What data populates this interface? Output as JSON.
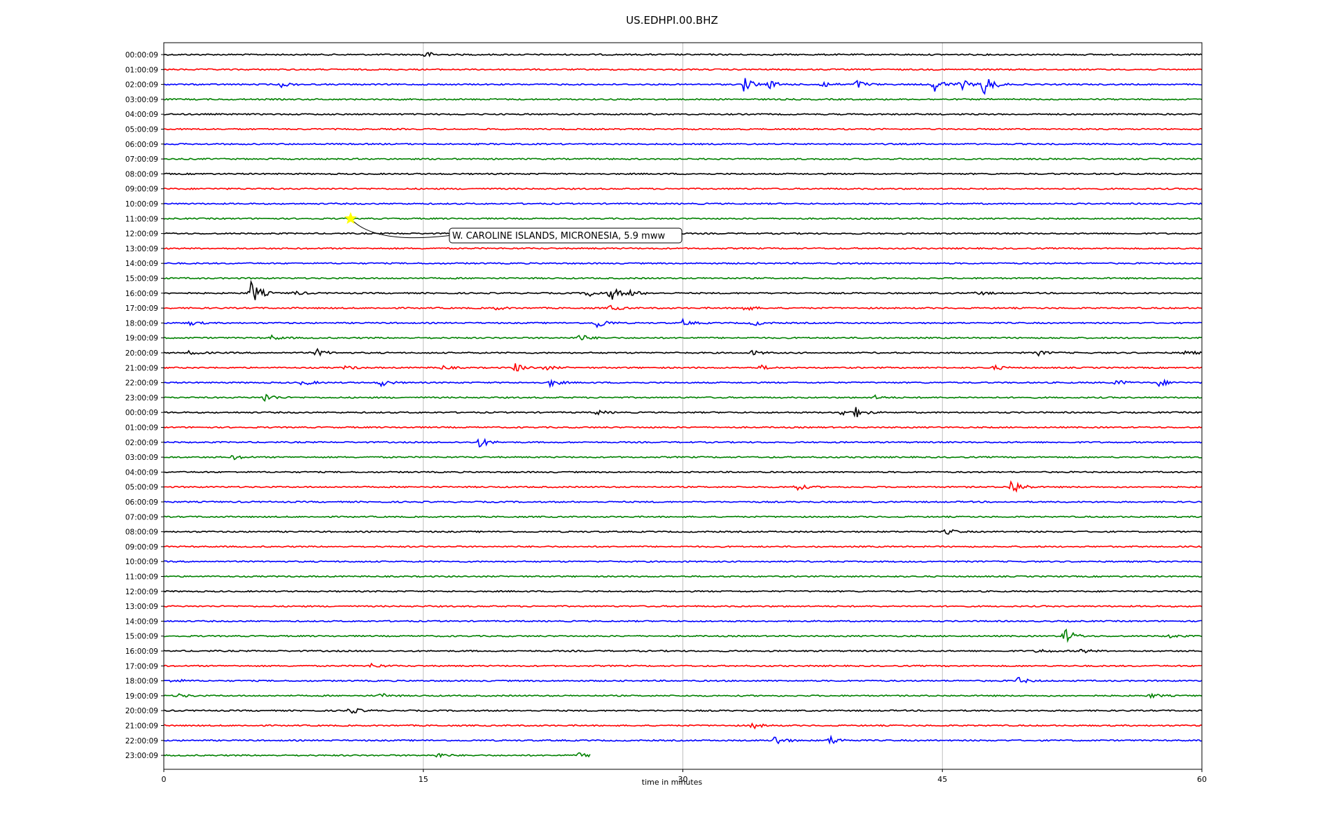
{
  "chart_data": {
    "type": "line",
    "title": "US.EDHPI.00.BHZ",
    "xlabel": "time in minutes",
    "ylabel": "",
    "xlim": [
      0,
      60
    ],
    "xticks": [
      0,
      15,
      30,
      45,
      60
    ],
    "grid": "vertical at x ticks",
    "row_labels": [
      "00:00:09",
      "01:00:09",
      "02:00:09",
      "03:00:09",
      "04:00:09",
      "05:00:09",
      "06:00:09",
      "07:00:09",
      "08:00:09",
      "09:00:09",
      "10:00:09",
      "11:00:09",
      "12:00:09",
      "13:00:09",
      "14:00:09",
      "15:00:09",
      "16:00:09",
      "17:00:09",
      "18:00:09",
      "19:00:09",
      "20:00:09",
      "21:00:09",
      "22:00:09",
      "23:00:09",
      "00:00:09",
      "01:00:09",
      "02:00:09",
      "03:00:09",
      "04:00:09",
      "05:00:09",
      "06:00:09",
      "07:00:09",
      "08:00:09",
      "09:00:09",
      "10:00:09",
      "11:00:09",
      "12:00:09",
      "13:00:09",
      "14:00:09",
      "15:00:09",
      "16:00:09",
      "17:00:09",
      "18:00:09",
      "19:00:09",
      "20:00:09",
      "21:00:09",
      "22:00:09",
      "23:00:09"
    ],
    "trace_colors": [
      "#000000",
      "#ff0000",
      "#0000ff",
      "#008000"
    ],
    "last_row_end_minute": 24.7,
    "event_bursts": [
      {
        "row": 0,
        "minute": 15.0,
        "amplitude": 0.5
      },
      {
        "row": 2,
        "minute": 6.8,
        "amplitude": 0.3
      },
      {
        "row": 2,
        "minute": 33.5,
        "amplitude": 1.0
      },
      {
        "row": 2,
        "minute": 35.0,
        "amplitude": 0.5
      },
      {
        "row": 2,
        "minute": 38.0,
        "amplitude": 0.5
      },
      {
        "row": 2,
        "minute": 40.0,
        "amplitude": 0.6
      },
      {
        "row": 2,
        "minute": 44.5,
        "amplitude": 1.0
      },
      {
        "row": 2,
        "minute": 46.0,
        "amplitude": 0.8
      },
      {
        "row": 2,
        "minute": 47.3,
        "amplitude": 1.8
      },
      {
        "row": 16,
        "minute": 5.0,
        "amplitude": 1.8
      },
      {
        "row": 16,
        "minute": 7.5,
        "amplitude": 0.3
      },
      {
        "row": 16,
        "minute": 24.5,
        "amplitude": 0.5
      },
      {
        "row": 16,
        "minute": 25.8,
        "amplitude": 1.0
      },
      {
        "row": 16,
        "minute": 27.0,
        "amplitude": 0.4
      },
      {
        "row": 16,
        "minute": 47.0,
        "amplitude": 0.3
      },
      {
        "row": 17,
        "minute": 19.0,
        "amplitude": 0.3
      },
      {
        "row": 17,
        "minute": 25.8,
        "amplitude": 0.4
      },
      {
        "row": 17,
        "minute": 33.5,
        "amplitude": 0.4
      },
      {
        "row": 18,
        "minute": 1.5,
        "amplitude": 0.3
      },
      {
        "row": 18,
        "minute": 25.0,
        "amplitude": 0.8
      },
      {
        "row": 18,
        "minute": 30.0,
        "amplitude": 0.4
      },
      {
        "row": 18,
        "minute": 34.0,
        "amplitude": 0.4
      },
      {
        "row": 19,
        "minute": 6.2,
        "amplitude": 0.3
      },
      {
        "row": 19,
        "minute": 24.0,
        "amplitude": 0.5
      },
      {
        "row": 20,
        "minute": 1.5,
        "amplitude": 0.3
      },
      {
        "row": 20,
        "minute": 8.8,
        "amplitude": 0.5
      },
      {
        "row": 20,
        "minute": 34.0,
        "amplitude": 0.3
      },
      {
        "row": 20,
        "minute": 50.5,
        "amplitude": 0.35
      },
      {
        "row": 20,
        "minute": 59.0,
        "amplitude": 0.35
      },
      {
        "row": 21,
        "minute": 10.5,
        "amplitude": 0.25
      },
      {
        "row": 21,
        "minute": 16.0,
        "amplitude": 0.3
      },
      {
        "row": 21,
        "minute": 20.3,
        "amplitude": 0.6
      },
      {
        "row": 21,
        "minute": 22.0,
        "amplitude": 0.3
      },
      {
        "row": 21,
        "minute": 34.5,
        "amplitude": 0.3
      },
      {
        "row": 21,
        "minute": 48.0,
        "amplitude": 0.3
      },
      {
        "row": 22,
        "minute": 8.0,
        "amplitude": 0.4
      },
      {
        "row": 22,
        "minute": 12.5,
        "amplitude": 0.5
      },
      {
        "row": 22,
        "minute": 22.3,
        "amplitude": 0.5
      },
      {
        "row": 22,
        "minute": 55.0,
        "amplitude": 0.4
      },
      {
        "row": 22,
        "minute": 57.5,
        "amplitude": 0.5
      },
      {
        "row": 23,
        "minute": 5.8,
        "amplitude": 0.6
      },
      {
        "row": 23,
        "minute": 41.0,
        "amplitude": 0.3
      },
      {
        "row": 24,
        "minute": 25.0,
        "amplitude": 0.3
      },
      {
        "row": 24,
        "minute": 39.0,
        "amplitude": 0.5
      },
      {
        "row": 24,
        "minute": 40.0,
        "amplitude": 0.6
      },
      {
        "row": 26,
        "minute": 18.2,
        "amplitude": 0.7
      },
      {
        "row": 27,
        "minute": 4.0,
        "amplitude": 0.3
      },
      {
        "row": 29,
        "minute": 36.5,
        "amplitude": 0.5
      },
      {
        "row": 29,
        "minute": 49.0,
        "amplitude": 1.2
      },
      {
        "row": 32,
        "minute": 45.2,
        "amplitude": 0.4
      },
      {
        "row": 39,
        "minute": 52.0,
        "amplitude": 1.2
      },
      {
        "row": 39,
        "minute": 58.0,
        "amplitude": 0.3
      },
      {
        "row": 40,
        "minute": 50.5,
        "amplitude": 0.3
      },
      {
        "row": 40,
        "minute": 53.0,
        "amplitude": 0.3
      },
      {
        "row": 41,
        "minute": 12.0,
        "amplitude": 0.35
      },
      {
        "row": 42,
        "minute": 0.5,
        "amplitude": 0.3
      },
      {
        "row": 42,
        "minute": 49.3,
        "amplitude": 0.5
      },
      {
        "row": 43,
        "minute": 0.8,
        "amplitude": 0.3
      },
      {
        "row": 43,
        "minute": 12.5,
        "amplitude": 0.3
      },
      {
        "row": 43,
        "minute": 57.0,
        "amplitude": 0.3
      },
      {
        "row": 44,
        "minute": 10.7,
        "amplitude": 0.5
      },
      {
        "row": 45,
        "minute": 34.0,
        "amplitude": 0.4
      },
      {
        "row": 46,
        "minute": 35.3,
        "amplitude": 0.7
      },
      {
        "row": 46,
        "minute": 38.5,
        "amplitude": 0.6
      },
      {
        "row": 47,
        "minute": 15.8,
        "amplitude": 0.3
      },
      {
        "row": 47,
        "minute": 24.0,
        "amplitude": 0.3
      }
    ],
    "annotations": [
      {
        "text": "W. CAROLINE ISLANDS, MICRONESIA, 5.9 mww",
        "row": 11,
        "minute": 10.8,
        "marker": "star",
        "marker_color": "#ffff00"
      }
    ]
  }
}
